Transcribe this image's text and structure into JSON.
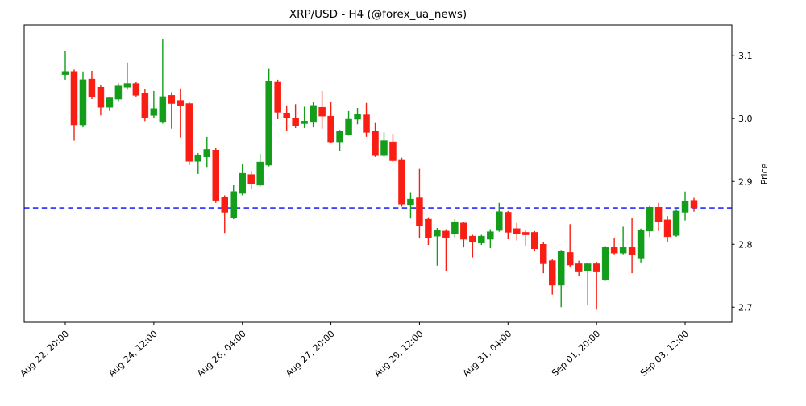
{
  "title": "XRP/USD - H4 (@forex_ua_news)",
  "axes": {
    "y_label": "Price",
    "y_tick_labels": [
      "3.1",
      "3.0",
      "2.9",
      "2.8",
      "2.7"
    ],
    "x_tick_labels": [
      "Aug 22, 20:00",
      "Aug 24, 12:00",
      "Aug 26, 04:00",
      "Aug 27, 20:00",
      "Aug 29, 12:00",
      "Aug 31, 04:00",
      "Sep 01, 20:00",
      "Sep 03, 12:00"
    ]
  },
  "colors": {
    "up": "#139d1b",
    "down": "#f91e14",
    "support_line": "#0000ff",
    "frame": "#000000",
    "background": "#ffffff"
  },
  "support_line": {
    "price": 2.858,
    "style": "dashed"
  },
  "chart_data": {
    "type": "candlestick",
    "symbol": "XRP/USD",
    "timeframe": "H4",
    "source": "@forex_ua_news",
    "title": "XRP/USD - H4 (@forex_ua_news)",
    "ylabel": "Price",
    "ylim": [
      2.676,
      3.149
    ],
    "y_ticks": [
      3.1,
      3.0,
      2.9,
      2.8,
      2.7
    ],
    "x_tick_indices": [
      0,
      10,
      20,
      30,
      40,
      50,
      60,
      70
    ],
    "x_tick_labels": [
      "Aug 22, 20:00",
      "Aug 24, 12:00",
      "Aug 26, 04:00",
      "Aug 27, 20:00",
      "Aug 29, 12:00",
      "Aug 31, 04:00",
      "Sep 01, 20:00",
      "Sep 03, 12:00"
    ],
    "support_level": 2.858,
    "grid": false,
    "legend": false,
    "candles": [
      {
        "time": "Aug 22, 20:00",
        "open": 3.07,
        "high": 3.108,
        "low": 3.062,
        "close": 3.075
      },
      {
        "time": "Aug 23, 00:00",
        "open": 3.075,
        "high": 3.078,
        "low": 2.965,
        "close": 2.99
      },
      {
        "time": "Aug 23, 04:00",
        "open": 2.99,
        "high": 3.075,
        "low": 2.986,
        "close": 3.062
      },
      {
        "time": "Aug 23, 08:00",
        "open": 3.063,
        "high": 3.076,
        "low": 3.031,
        "close": 3.035
      },
      {
        "time": "Aug 23, 12:00",
        "open": 3.05,
        "high": 3.053,
        "low": 3.005,
        "close": 3.018
      },
      {
        "time": "Aug 23, 16:00",
        "open": 3.018,
        "high": 3.035,
        "low": 3.012,
        "close": 3.033
      },
      {
        "time": "Aug 23, 20:00",
        "open": 3.031,
        "high": 3.056,
        "low": 3.028,
        "close": 3.052
      },
      {
        "time": "Aug 24, 00:00",
        "open": 3.05,
        "high": 3.089,
        "low": 3.046,
        "close": 3.056
      },
      {
        "time": "Aug 24, 04:00",
        "open": 3.056,
        "high": 3.058,
        "low": 3.035,
        "close": 3.037
      },
      {
        "time": "Aug 24, 08:00",
        "open": 3.041,
        "high": 3.047,
        "low": 2.996,
        "close": 3.001
      },
      {
        "time": "Aug 24, 12:00",
        "open": 3.005,
        "high": 3.044,
        "low": 3.001,
        "close": 3.016
      },
      {
        "time": "Aug 24, 16:00",
        "open": 2.994,
        "high": 3.126,
        "low": 2.992,
        "close": 3.035
      },
      {
        "time": "Aug 24, 20:00",
        "open": 3.037,
        "high": 3.042,
        "low": 2.984,
        "close": 3.024
      },
      {
        "time": "Aug 25, 00:00",
        "open": 3.029,
        "high": 3.048,
        "low": 2.97,
        "close": 3.02
      },
      {
        "time": "Aug 25, 04:00",
        "open": 3.024,
        "high": 3.026,
        "low": 2.926,
        "close": 2.932
      },
      {
        "time": "Aug 25, 08:00",
        "open": 2.932,
        "high": 2.945,
        "low": 2.912,
        "close": 2.941
      },
      {
        "time": "Aug 25, 12:00",
        "open": 2.939,
        "high": 2.971,
        "low": 2.923,
        "close": 2.951
      },
      {
        "time": "Aug 25, 16:00",
        "open": 2.95,
        "high": 2.953,
        "low": 2.866,
        "close": 2.87
      },
      {
        "time": "Aug 25, 20:00",
        "open": 2.875,
        "high": 2.878,
        "low": 2.818,
        "close": 2.851
      },
      {
        "time": "Aug 26, 00:00",
        "open": 2.842,
        "high": 2.894,
        "low": 2.84,
        "close": 2.884
      },
      {
        "time": "Aug 26, 04:00",
        "open": 2.881,
        "high": 2.928,
        "low": 2.878,
        "close": 2.913
      },
      {
        "time": "Aug 26, 08:00",
        "open": 2.911,
        "high": 2.917,
        "low": 2.888,
        "close": 2.896
      },
      {
        "time": "Aug 26, 12:00",
        "open": 2.894,
        "high": 2.944,
        "low": 2.892,
        "close": 2.931
      },
      {
        "time": "Aug 26, 16:00",
        "open": 2.926,
        "high": 3.079,
        "low": 2.924,
        "close": 3.06
      },
      {
        "time": "Aug 26, 20:00",
        "open": 3.058,
        "high": 3.062,
        "low": 2.999,
        "close": 3.01
      },
      {
        "time": "Aug 27, 00:00",
        "open": 3.009,
        "high": 3.021,
        "low": 2.98,
        "close": 3.001
      },
      {
        "time": "Aug 27, 04:00",
        "open": 3.001,
        "high": 3.023,
        "low": 2.985,
        "close": 2.989
      },
      {
        "time": "Aug 27, 08:00",
        "open": 2.992,
        "high": 3.019,
        "low": 2.985,
        "close": 2.996
      },
      {
        "time": "Aug 27, 12:00",
        "open": 2.994,
        "high": 3.027,
        "low": 2.986,
        "close": 3.021
      },
      {
        "time": "Aug 27, 16:00",
        "open": 3.018,
        "high": 3.044,
        "low": 2.984,
        "close": 3.004
      },
      {
        "time": "Aug 27, 20:00",
        "open": 3.004,
        "high": 3.027,
        "low": 2.961,
        "close": 2.963
      },
      {
        "time": "Aug 28, 00:00",
        "open": 2.963,
        "high": 2.982,
        "low": 2.948,
        "close": 2.98
      },
      {
        "time": "Aug 28, 04:00",
        "open": 2.974,
        "high": 3.012,
        "low": 2.973,
        "close": 2.999
      },
      {
        "time": "Aug 28, 08:00",
        "open": 2.999,
        "high": 3.017,
        "low": 2.991,
        "close": 3.007
      },
      {
        "time": "Aug 28, 12:00",
        "open": 3.006,
        "high": 3.025,
        "low": 2.971,
        "close": 2.978
      },
      {
        "time": "Aug 28, 16:00",
        "open": 2.98,
        "high": 2.993,
        "low": 2.939,
        "close": 2.941
      },
      {
        "time": "Aug 28, 20:00",
        "open": 2.941,
        "high": 2.978,
        "low": 2.939,
        "close": 2.965
      },
      {
        "time": "Aug 29, 00:00",
        "open": 2.963,
        "high": 2.976,
        "low": 2.931,
        "close": 2.933
      },
      {
        "time": "Aug 29, 04:00",
        "open": 2.935,
        "high": 2.938,
        "low": 2.86,
        "close": 2.864
      },
      {
        "time": "Aug 29, 08:00",
        "open": 2.862,
        "high": 2.883,
        "low": 2.841,
        "close": 2.872
      },
      {
        "time": "Aug 29, 12:00",
        "open": 2.874,
        "high": 2.92,
        "low": 2.81,
        "close": 2.829
      },
      {
        "time": "Aug 29, 16:00",
        "open": 2.84,
        "high": 2.843,
        "low": 2.799,
        "close": 2.81
      },
      {
        "time": "Aug 29, 20:00",
        "open": 2.813,
        "high": 2.826,
        "low": 2.766,
        "close": 2.823
      },
      {
        "time": "Aug 30, 00:00",
        "open": 2.821,
        "high": 2.824,
        "low": 2.757,
        "close": 2.811
      },
      {
        "time": "Aug 30, 04:00",
        "open": 2.817,
        "high": 2.84,
        "low": 2.811,
        "close": 2.836
      },
      {
        "time": "Aug 30, 08:00",
        "open": 2.834,
        "high": 2.836,
        "low": 2.795,
        "close": 2.808
      },
      {
        "time": "Aug 30, 12:00",
        "open": 2.813,
        "high": 2.815,
        "low": 2.779,
        "close": 2.804
      },
      {
        "time": "Aug 30, 16:00",
        "open": 2.802,
        "high": 2.815,
        "low": 2.799,
        "close": 2.813
      },
      {
        "time": "Aug 30, 20:00",
        "open": 2.808,
        "high": 2.824,
        "low": 2.794,
        "close": 2.82
      },
      {
        "time": "Aug 31, 00:00",
        "open": 2.822,
        "high": 2.866,
        "low": 2.82,
        "close": 2.852
      },
      {
        "time": "Aug 31, 04:00",
        "open": 2.851,
        "high": 2.853,
        "low": 2.808,
        "close": 2.819
      },
      {
        "time": "Aug 31, 08:00",
        "open": 2.825,
        "high": 2.834,
        "low": 2.806,
        "close": 2.817
      },
      {
        "time": "Aug 31, 12:00",
        "open": 2.819,
        "high": 2.823,
        "low": 2.798,
        "close": 2.815
      },
      {
        "time": "Aug 31, 16:00",
        "open": 2.819,
        "high": 2.821,
        "low": 2.79,
        "close": 2.793
      },
      {
        "time": "Aug 31, 20:00",
        "open": 2.8,
        "high": 2.803,
        "low": 2.754,
        "close": 2.769
      },
      {
        "time": "Sep 01, 00:00",
        "open": 2.774,
        "high": 2.776,
        "low": 2.72,
        "close": 2.735
      },
      {
        "time": "Sep 01, 04:00",
        "open": 2.735,
        "high": 2.791,
        "low": 2.7,
        "close": 2.789
      },
      {
        "time": "Sep 01, 08:00",
        "open": 2.787,
        "high": 2.832,
        "low": 2.763,
        "close": 2.767
      },
      {
        "time": "Sep 01, 12:00",
        "open": 2.769,
        "high": 2.774,
        "low": 2.75,
        "close": 2.756
      },
      {
        "time": "Sep 01, 16:00",
        "open": 2.758,
        "high": 2.771,
        "low": 2.703,
        "close": 2.769
      },
      {
        "time": "Sep 01, 20:00",
        "open": 2.769,
        "high": 2.772,
        "low": 2.696,
        "close": 2.756
      },
      {
        "time": "Sep 02, 00:00",
        "open": 2.744,
        "high": 2.797,
        "low": 2.742,
        "close": 2.795
      },
      {
        "time": "Sep 02, 04:00",
        "open": 2.795,
        "high": 2.81,
        "low": 2.784,
        "close": 2.786
      },
      {
        "time": "Sep 02, 08:00",
        "open": 2.786,
        "high": 2.828,
        "low": 2.784,
        "close": 2.795
      },
      {
        "time": "Sep 02, 12:00",
        "open": 2.795,
        "high": 2.842,
        "low": 2.754,
        "close": 2.784
      },
      {
        "time": "Sep 02, 16:00",
        "open": 2.778,
        "high": 2.825,
        "low": 2.771,
        "close": 2.823
      },
      {
        "time": "Sep 02, 20:00",
        "open": 2.821,
        "high": 2.861,
        "low": 2.812,
        "close": 2.859
      },
      {
        "time": "Sep 03, 00:00",
        "open": 2.859,
        "high": 2.866,
        "low": 2.821,
        "close": 2.836
      },
      {
        "time": "Sep 03, 04:00",
        "open": 2.839,
        "high": 2.845,
        "low": 2.803,
        "close": 2.812
      },
      {
        "time": "Sep 03, 08:00",
        "open": 2.814,
        "high": 2.855,
        "low": 2.812,
        "close": 2.853
      },
      {
        "time": "Sep 03, 12:00",
        "open": 2.851,
        "high": 2.884,
        "low": 2.838,
        "close": 2.868
      },
      {
        "time": "Sep 03, 16:00",
        "open": 2.87,
        "high": 2.874,
        "low": 2.852,
        "close": 2.858
      }
    ]
  }
}
